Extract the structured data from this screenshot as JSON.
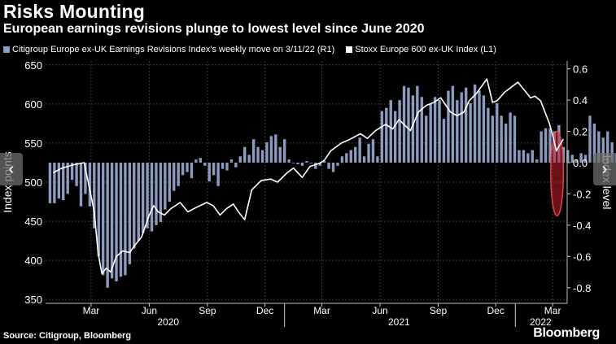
{
  "header": {
    "title": "Risks Mounting",
    "subtitle": "European earnings revisions plunge to lowest level since June 2020"
  },
  "footer": {
    "source": "Source: Citigroup, Bloomberg",
    "brand": "Bloomberg"
  },
  "colors": {
    "background": "#000000",
    "bars": "#8c9bc0",
    "line": "#ffffff",
    "grid": "#3a3a3a",
    "highlight": "#c41e2e"
  },
  "icons": {
    "prev": "chevron-left-icon",
    "next": "chevron-right-icon"
  },
  "chart_data": {
    "type": "bar+line",
    "title": "Risks Mounting",
    "subtitle": "European earnings revisions plunge to lowest level since June 2020",
    "legend": [
      "Citigroup Europe ex-UK Earnings Revisions Index's weekly move on 3/11/22 (R1)",
      "Stoxx Europe 600 ex-UK Index (L1)"
    ],
    "legend_position": "top-left",
    "grid": true,
    "y_left": {
      "label": "Index points",
      "ylim": [
        345,
        655
      ],
      "ticks": [
        350,
        400,
        450,
        500,
        550,
        600,
        650
      ],
      "tick_labels": [
        "350",
        "400",
        "450",
        "500",
        "550",
        "600",
        "650"
      ]
    },
    "y_right": {
      "label": "Index level",
      "ylim": [
        -0.9,
        0.65
      ],
      "ticks": [
        0.6,
        0.4,
        0.2,
        0.0,
        -0.2,
        -0.4,
        -0.6,
        -0.8
      ],
      "tick_labels": [
        "0.6",
        "0.4",
        "0.2",
        "0.0",
        "-0.2",
        "-0.4",
        "-0.6",
        "-0.8"
      ]
    },
    "x": {
      "start": "2019-12-20",
      "end": "2022-03-24",
      "month_ticks": [
        {
          "date": "2020-03-01",
          "label": "Mar"
        },
        {
          "date": "2020-06-01",
          "label": "Jun"
        },
        {
          "date": "2020-09-01",
          "label": "Sep"
        },
        {
          "date": "2020-12-01",
          "label": "Dec"
        },
        {
          "date": "2021-03-01",
          "label": "Mar"
        },
        {
          "date": "2021-06-01",
          "label": "Jun"
        },
        {
          "date": "2021-09-01",
          "label": "Sep"
        },
        {
          "date": "2021-12-01",
          "label": "Dec"
        },
        {
          "date": "2022-03-01",
          "label": "Mar"
        }
      ],
      "year_labels": [
        {
          "label": "2020",
          "date": "2020-07-01"
        },
        {
          "label": "2021",
          "date": "2021-07-01"
        },
        {
          "label": "2022",
          "date": "2022-02-10"
        }
      ],
      "year_separators": [
        "2021-01-01",
        "2022-01-01"
      ]
    },
    "series": [
      {
        "name": "Citigroup Europe ex-UK Earnings Revisions Index's weekly move on 3/11/22 (R1)",
        "axis": "right",
        "kind": "bar",
        "start": "2019-12-27",
        "step_days": 7,
        "values": [
          -0.26,
          -0.26,
          -0.23,
          -0.24,
          -0.2,
          -0.11,
          -0.15,
          -0.28,
          -0.2,
          -0.28,
          -0.42,
          -0.6,
          -0.72,
          -0.8,
          -0.74,
          -0.76,
          -0.73,
          -0.72,
          -0.65,
          -0.55,
          -0.5,
          -0.45,
          -0.42,
          -0.44,
          -0.4,
          -0.38,
          -0.3,
          -0.25,
          -0.18,
          -0.15,
          -0.08,
          -0.06,
          -0.1,
          0.02,
          0.03,
          -0.02,
          -0.12,
          -0.08,
          -0.15,
          -0.04,
          -0.05,
          0.02,
          -0.03,
          0.04,
          0.1,
          0.05,
          0.15,
          0.1,
          0.08,
          0.13,
          0.17,
          0.18,
          0.1,
          0.15,
          0.02,
          0.0,
          -0.01,
          -0.02,
          0.01,
          0.0,
          -0.04,
          -0.02,
          0.01,
          -0.04,
          -0.06,
          -0.02,
          0.04,
          0.06,
          0.08,
          0.1,
          0.16,
          0.04,
          0.12,
          0.15,
          0.04,
          0.33,
          0.35,
          0.4,
          0.33,
          0.4,
          0.49,
          0.48,
          0.43,
          0.49,
          0.42,
          0.3,
          0.38,
          0.42,
          0.4,
          0.28,
          0.46,
          0.49,
          0.4,
          0.45,
          0.48,
          0.38,
          0.5,
          0.46,
          0.43,
          0.35,
          0.3,
          0.38,
          0.3,
          0.25,
          0.32,
          0.3,
          0.08,
          0.08,
          0.06,
          0.08,
          0.02,
          0.2,
          0.22,
          0.22,
          0.2,
          0.24,
          0.1,
          0.08,
          0.05,
          0.02,
          0.06,
          0.05,
          0.3,
          0.25,
          0.2,
          0.16,
          0.2,
          0.13,
          0.05,
          0.0,
          -0.28,
          -0.25,
          -0.05
        ]
      },
      {
        "name": "Stoxx Europe 600 ex-UK Index (L1)",
        "axis": "left",
        "kind": "line",
        "points": [
          [
            "2020-01-01",
            512
          ],
          [
            "2020-01-15",
            518
          ],
          [
            "2020-02-01",
            522
          ],
          [
            "2020-02-19",
            525
          ],
          [
            "2020-02-28",
            490
          ],
          [
            "2020-03-06",
            462
          ],
          [
            "2020-03-12",
            410
          ],
          [
            "2020-03-18",
            383
          ],
          [
            "2020-03-25",
            390
          ],
          [
            "2020-04-01",
            385
          ],
          [
            "2020-04-10",
            405
          ],
          [
            "2020-04-20",
            412
          ],
          [
            "2020-05-01",
            410
          ],
          [
            "2020-05-10",
            420
          ],
          [
            "2020-05-20",
            430
          ],
          [
            "2020-06-01",
            458
          ],
          [
            "2020-06-08",
            470
          ],
          [
            "2020-06-15",
            462
          ],
          [
            "2020-06-25",
            458
          ],
          [
            "2020-07-05",
            466
          ],
          [
            "2020-07-20",
            474
          ],
          [
            "2020-08-01",
            462
          ],
          [
            "2020-08-15",
            468
          ],
          [
            "2020-08-31",
            474
          ],
          [
            "2020-09-10",
            470
          ],
          [
            "2020-09-21",
            458
          ],
          [
            "2020-10-01",
            466
          ],
          [
            "2020-10-12",
            472
          ],
          [
            "2020-10-20",
            462
          ],
          [
            "2020-10-30",
            452
          ],
          [
            "2020-11-10",
            490
          ],
          [
            "2020-11-25",
            502
          ],
          [
            "2020-12-10",
            504
          ],
          [
            "2020-12-21",
            500
          ],
          [
            "2021-01-05",
            512
          ],
          [
            "2021-01-15",
            518
          ],
          [
            "2021-01-29",
            506
          ],
          [
            "2021-02-10",
            520
          ],
          [
            "2021-02-25",
            524
          ],
          [
            "2021-03-05",
            528
          ],
          [
            "2021-03-15",
            540
          ],
          [
            "2021-04-01",
            550
          ],
          [
            "2021-04-15",
            555
          ],
          [
            "2021-05-01",
            562
          ],
          [
            "2021-05-12",
            556
          ],
          [
            "2021-05-25",
            566
          ],
          [
            "2021-06-10",
            574
          ],
          [
            "2021-06-21",
            568
          ],
          [
            "2021-07-01",
            580
          ],
          [
            "2021-07-19",
            566
          ],
          [
            "2021-08-01",
            590
          ],
          [
            "2021-08-13",
            598
          ],
          [
            "2021-08-25",
            602
          ],
          [
            "2021-09-05",
            608
          ],
          [
            "2021-09-20",
            590
          ],
          [
            "2021-10-01",
            585
          ],
          [
            "2021-10-12",
            590
          ],
          [
            "2021-10-20",
            604
          ],
          [
            "2021-11-01",
            614
          ],
          [
            "2021-11-17",
            632
          ],
          [
            "2021-11-26",
            602
          ],
          [
            "2021-12-03",
            604
          ],
          [
            "2021-12-15",
            615
          ],
          [
            "2022-01-05",
            628
          ],
          [
            "2022-01-15",
            618
          ],
          [
            "2022-01-25",
            608
          ],
          [
            "2022-02-01",
            610
          ],
          [
            "2022-02-10",
            604
          ],
          [
            "2022-02-24",
            575
          ],
          [
            "2022-03-01",
            560
          ],
          [
            "2022-03-07",
            540
          ],
          [
            "2022-03-11",
            546
          ],
          [
            "2022-03-18",
            555
          ]
        ]
      }
    ],
    "annotations": [
      {
        "type": "ellipse-highlight",
        "start": "2022-02-26",
        "end": "2022-03-18",
        "range_right": [
          -0.34,
          0.2
        ],
        "note": "red translucent oval over latest bars"
      }
    ]
  }
}
